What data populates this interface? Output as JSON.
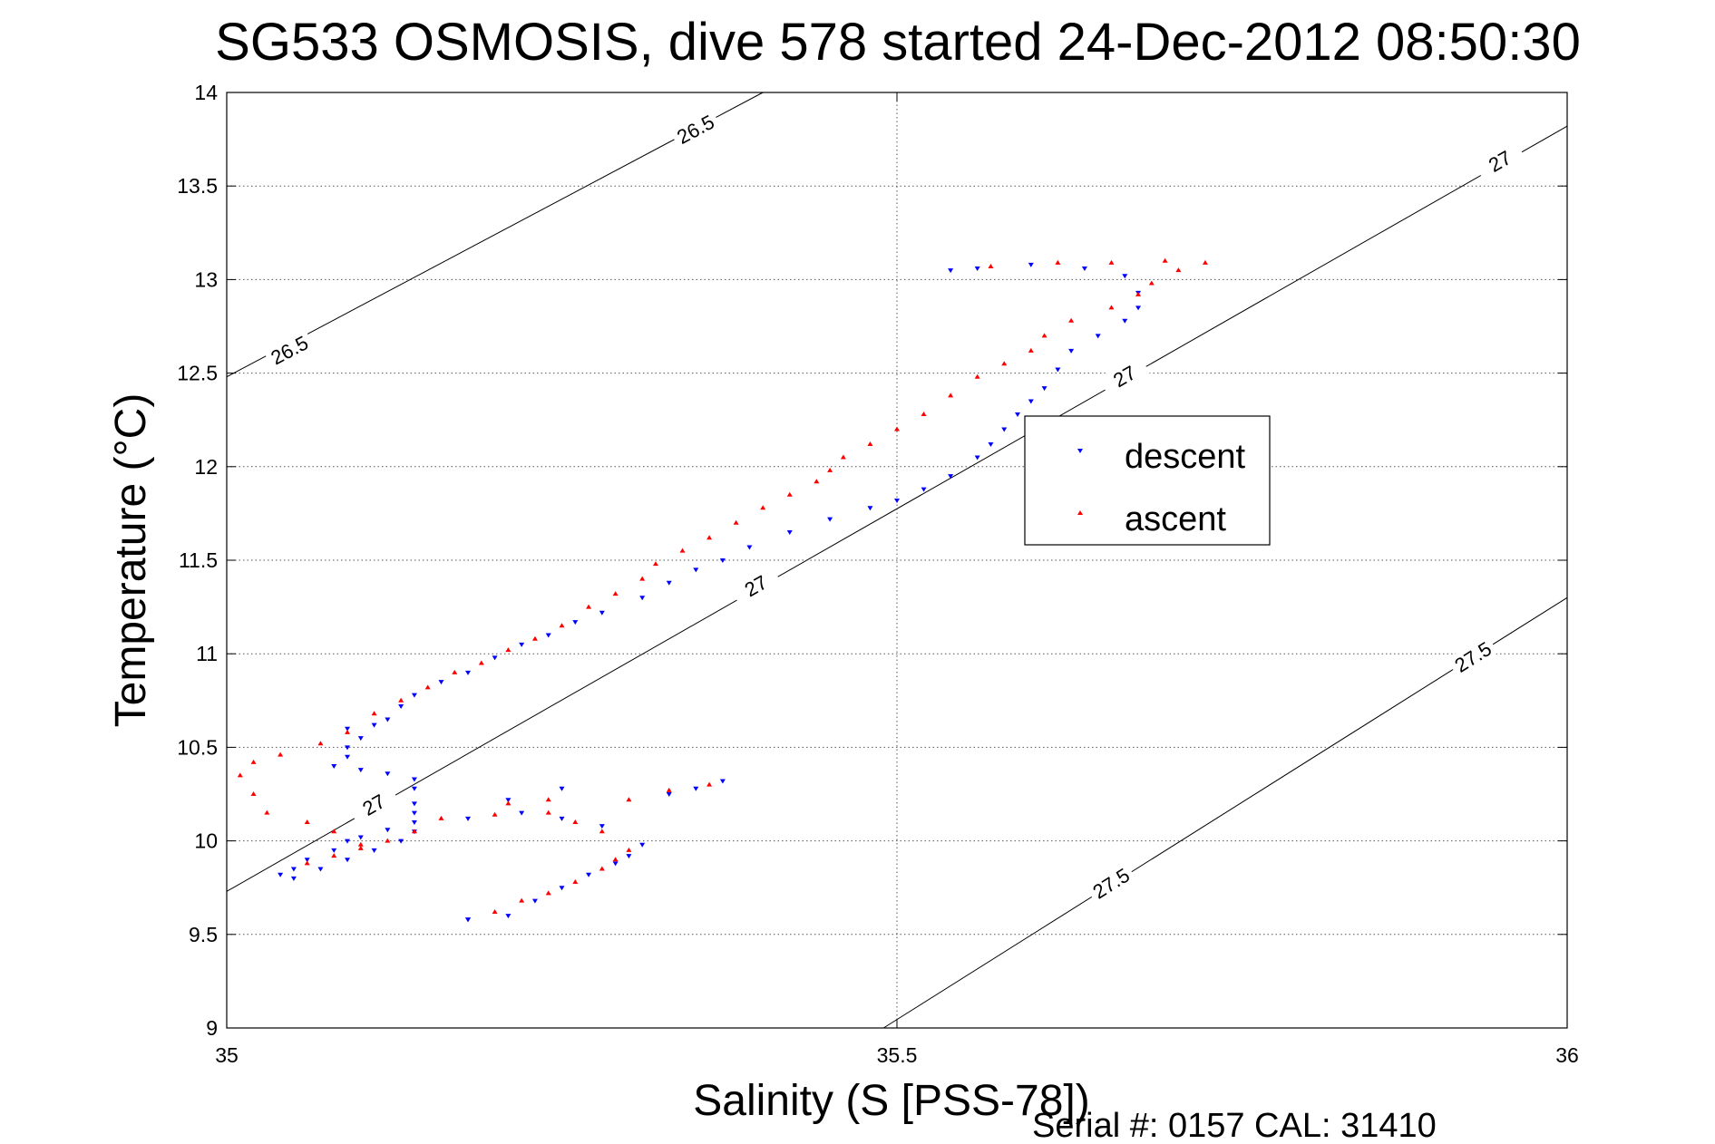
{
  "chart_data": {
    "type": "scatter",
    "title": "SG533 OSMOSIS, dive 578 started 24-Dec-2012 08:50:30",
    "xlabel": "Salinity (S [PSS-78])",
    "ylabel": "Temperature (°C)",
    "xlim": [
      35,
      36
    ],
    "ylim": [
      9,
      14
    ],
    "x_ticks": [
      "35",
      "35.5",
      "36"
    ],
    "y_ticks": [
      "9",
      "9.5",
      "10",
      "10.5",
      "11",
      "11.5",
      "12",
      "12.5",
      "13",
      "13.5",
      "14"
    ],
    "grid": true,
    "legend_position": "center-right",
    "series": [
      {
        "name": "descent",
        "color": "#0000ff",
        "marker": "triangle-down",
        "points": [
          [
            35.18,
            9.58
          ],
          [
            35.21,
            9.6
          ],
          [
            35.23,
            9.68
          ],
          [
            35.25,
            9.75
          ],
          [
            35.27,
            9.82
          ],
          [
            35.29,
            9.88
          ],
          [
            35.3,
            9.92
          ],
          [
            35.31,
            9.98
          ],
          [
            35.28,
            10.08
          ],
          [
            35.25,
            10.12
          ],
          [
            35.22,
            10.15
          ],
          [
            35.18,
            10.12
          ],
          [
            35.12,
            10.06
          ],
          [
            35.1,
            10.02
          ],
          [
            35.09,
            10.0
          ],
          [
            35.08,
            9.95
          ],
          [
            35.06,
            9.9
          ],
          [
            35.05,
            9.85
          ],
          [
            35.04,
            9.82
          ],
          [
            35.05,
            9.8
          ],
          [
            35.07,
            9.85
          ],
          [
            35.09,
            9.9
          ],
          [
            35.11,
            9.95
          ],
          [
            35.13,
            10.0
          ],
          [
            35.14,
            10.05
          ],
          [
            35.14,
            10.1
          ],
          [
            35.14,
            10.15
          ],
          [
            35.14,
            10.2
          ],
          [
            35.14,
            10.28
          ],
          [
            35.14,
            10.33
          ],
          [
            35.12,
            10.36
          ],
          [
            35.1,
            10.38
          ],
          [
            35.08,
            10.4
          ],
          [
            35.09,
            10.45
          ],
          [
            35.09,
            10.5
          ],
          [
            35.1,
            10.55
          ],
          [
            35.09,
            10.6
          ],
          [
            35.11,
            10.62
          ],
          [
            35.12,
            10.65
          ],
          [
            35.13,
            10.72
          ],
          [
            35.14,
            10.78
          ],
          [
            35.16,
            10.85
          ],
          [
            35.18,
            10.9
          ],
          [
            35.2,
            10.98
          ],
          [
            35.22,
            11.05
          ],
          [
            35.24,
            11.1
          ],
          [
            35.26,
            11.17
          ],
          [
            35.28,
            11.22
          ],
          [
            35.31,
            11.3
          ],
          [
            35.33,
            11.38
          ],
          [
            35.35,
            11.45
          ],
          [
            35.37,
            11.5
          ],
          [
            35.39,
            11.57
          ],
          [
            35.42,
            11.65
          ],
          [
            35.45,
            11.72
          ],
          [
            35.48,
            11.78
          ],
          [
            35.5,
            11.82
          ],
          [
            35.52,
            11.88
          ],
          [
            35.54,
            11.95
          ],
          [
            35.56,
            12.05
          ],
          [
            35.57,
            12.12
          ],
          [
            35.58,
            12.2
          ],
          [
            35.59,
            12.28
          ],
          [
            35.6,
            12.35
          ],
          [
            35.61,
            12.42
          ],
          [
            35.62,
            12.52
          ],
          [
            35.63,
            12.62
          ],
          [
            35.65,
            12.7
          ],
          [
            35.67,
            12.78
          ],
          [
            35.68,
            12.85
          ],
          [
            35.68,
            12.93
          ],
          [
            35.67,
            13.02
          ],
          [
            35.64,
            13.06
          ],
          [
            35.6,
            13.08
          ],
          [
            35.56,
            13.06
          ],
          [
            35.54,
            13.05
          ],
          [
            35.37,
            10.32
          ],
          [
            35.35,
            10.28
          ],
          [
            35.33,
            10.25
          ],
          [
            35.25,
            10.28
          ],
          [
            35.21,
            10.22
          ],
          [
            35.18,
            9.58
          ]
        ]
      },
      {
        "name": "ascent",
        "color": "#ff0000",
        "marker": "triangle-up",
        "points": [
          [
            35.2,
            9.62
          ],
          [
            35.22,
            9.68
          ],
          [
            35.24,
            9.72
          ],
          [
            35.26,
            9.78
          ],
          [
            35.28,
            9.85
          ],
          [
            35.29,
            9.9
          ],
          [
            35.3,
            9.95
          ],
          [
            35.28,
            10.05
          ],
          [
            35.26,
            10.1
          ],
          [
            35.24,
            10.15
          ],
          [
            35.2,
            10.14
          ],
          [
            35.16,
            10.12
          ],
          [
            35.14,
            10.05
          ],
          [
            35.12,
            10.0
          ],
          [
            35.1,
            9.96
          ],
          [
            35.08,
            9.92
          ],
          [
            35.06,
            9.88
          ],
          [
            35.1,
            9.98
          ],
          [
            35.08,
            10.05
          ],
          [
            35.06,
            10.1
          ],
          [
            35.03,
            10.15
          ],
          [
            35.02,
            10.25
          ],
          [
            35.01,
            10.35
          ],
          [
            35.02,
            10.42
          ],
          [
            35.04,
            10.46
          ],
          [
            35.07,
            10.52
          ],
          [
            35.09,
            10.58
          ],
          [
            35.11,
            10.68
          ],
          [
            35.13,
            10.75
          ],
          [
            35.15,
            10.82
          ],
          [
            35.17,
            10.9
          ],
          [
            35.19,
            10.95
          ],
          [
            35.21,
            11.02
          ],
          [
            35.23,
            11.08
          ],
          [
            35.25,
            11.15
          ],
          [
            35.27,
            11.25
          ],
          [
            35.29,
            11.32
          ],
          [
            35.31,
            11.4
          ],
          [
            35.32,
            11.48
          ],
          [
            35.34,
            11.55
          ],
          [
            35.36,
            11.62
          ],
          [
            35.38,
            11.7
          ],
          [
            35.4,
            11.78
          ],
          [
            35.42,
            11.85
          ],
          [
            35.44,
            11.92
          ],
          [
            35.45,
            11.98
          ],
          [
            35.46,
            12.05
          ],
          [
            35.48,
            12.12
          ],
          [
            35.5,
            12.2
          ],
          [
            35.52,
            12.28
          ],
          [
            35.54,
            12.38
          ],
          [
            35.56,
            12.48
          ],
          [
            35.58,
            12.55
          ],
          [
            35.6,
            12.62
          ],
          [
            35.61,
            12.7
          ],
          [
            35.63,
            12.78
          ],
          [
            35.66,
            12.85
          ],
          [
            35.68,
            12.92
          ],
          [
            35.69,
            12.98
          ],
          [
            35.71,
            13.05
          ],
          [
            35.73,
            13.09
          ],
          [
            35.7,
            13.1
          ],
          [
            35.66,
            13.09
          ],
          [
            35.62,
            13.09
          ],
          [
            35.57,
            13.07
          ],
          [
            35.36,
            10.3
          ],
          [
            35.33,
            10.27
          ],
          [
            35.3,
            10.22
          ],
          [
            35.24,
            10.22
          ],
          [
            35.21,
            10.2
          ]
        ]
      }
    ],
    "contours": [
      {
        "label": "26.5",
        "points": [
          [
            35,
            12.48
          ],
          [
            35.4,
            14.0
          ]
        ],
        "label_positions": [
          [
            35.35,
            13.8
          ],
          [
            35.047,
            12.62
          ]
        ]
      },
      {
        "label": "27",
        "points": [
          [
            35,
            9.73
          ],
          [
            36,
            13.82
          ]
        ],
        "label_positions": [
          [
            35.11,
            10.19
          ],
          [
            35.395,
            11.36
          ],
          [
            35.67,
            12.48
          ],
          [
            35.95,
            13.63
          ]
        ]
      },
      {
        "label": "27.5",
        "points": [
          [
            35.49,
            9.0
          ],
          [
            36,
            11.3
          ]
        ],
        "label_positions": [
          [
            35.66,
            9.77
          ],
          [
            35.93,
            10.98
          ]
        ]
      }
    ]
  },
  "footer": "Serial #: 0157  CAL: 31410"
}
